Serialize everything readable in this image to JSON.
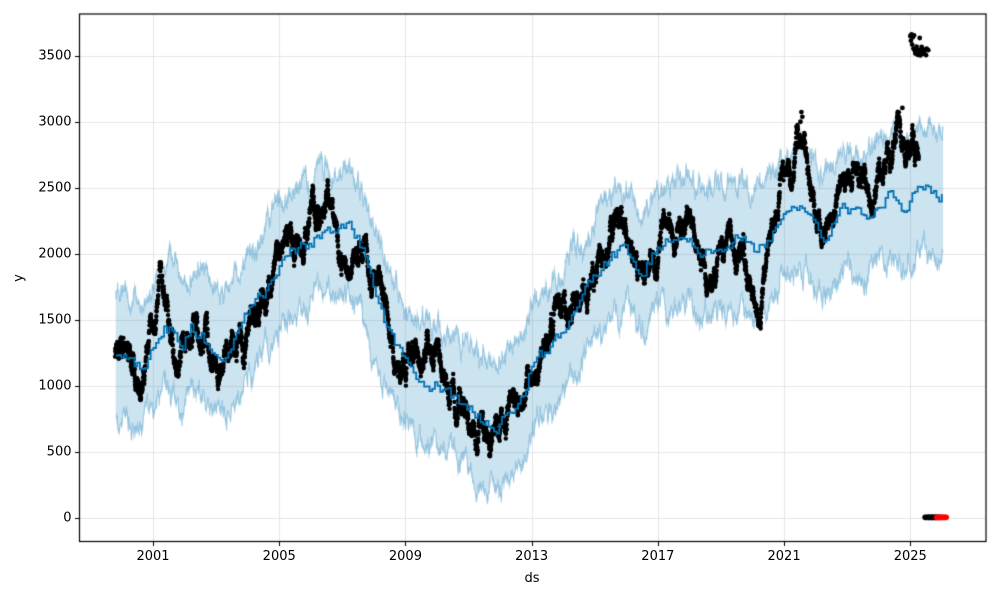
{
  "figure": {
    "background": "#ffffff",
    "kind": "prophet-style forecast plot"
  },
  "chart_data": {
    "type": "line",
    "title": "",
    "xlabel": "ds",
    "ylabel": "y",
    "x_ticks": [
      2001,
      2005,
      2009,
      2013,
      2017,
      2021,
      2025
    ],
    "y_ticks": [
      0,
      500,
      1000,
      1500,
      2000,
      2500,
      3000,
      3500
    ],
    "xlim": [
      1998.67,
      2027.4
    ],
    "ylim": [
      -178,
      3822
    ],
    "grid": true,
    "legend": false,
    "seed": 42,
    "colors": {
      "observed_points": "#000000",
      "forecast_line": "#0072B2",
      "uncertainty_fill": "rgba(0,114,178,0.20)",
      "uncertainty_edge": "rgba(0,114,178,0.32)",
      "anomaly_points": "#ff0000",
      "grid": "#e6e6e6",
      "frame": "#000000",
      "tick": "#000000"
    },
    "series": [
      {
        "name": "observed",
        "style": "scatter",
        "color": "#000000",
        "marker_radius": 2.2,
        "points_per_year": 210,
        "t_start": 1999.8,
        "t_end": 2025.27,
        "noise_ar": 0.975,
        "noise_amp": 92,
        "jitter": 26,
        "mean_anchors": [
          [
            1999.8,
            1215
          ],
          [
            2000.1,
            1230
          ],
          [
            2000.45,
            1120
          ],
          [
            2000.75,
            1090
          ],
          [
            2001.05,
            1320
          ],
          [
            2001.25,
            1720
          ],
          [
            2001.45,
            1680
          ],
          [
            2001.8,
            1250
          ],
          [
            2002.1,
            1390
          ],
          [
            2002.45,
            1520
          ],
          [
            2002.75,
            1280
          ],
          [
            2003.05,
            1060
          ],
          [
            2003.35,
            1120
          ],
          [
            2003.7,
            1320
          ],
          [
            2004.1,
            1560
          ],
          [
            2004.5,
            1700
          ],
          [
            2004.9,
            1900
          ],
          [
            2005.3,
            2060
          ],
          [
            2005.7,
            2110
          ],
          [
            2006.1,
            2120
          ],
          [
            2006.5,
            2180
          ],
          [
            2006.9,
            2080
          ],
          [
            2007.3,
            2150
          ],
          [
            2007.7,
            1950
          ],
          [
            2008.1,
            1700
          ],
          [
            2008.5,
            1450
          ],
          [
            2008.9,
            1200
          ],
          [
            2009.3,
            1020
          ],
          [
            2009.7,
            1080
          ],
          [
            2010.1,
            1010
          ],
          [
            2010.5,
            950
          ],
          [
            2010.9,
            860
          ],
          [
            2011.3,
            790
          ],
          [
            2011.7,
            710
          ],
          [
            2012.0,
            760
          ],
          [
            2012.4,
            830
          ],
          [
            2012.8,
            980
          ],
          [
            2013.2,
            1130
          ],
          [
            2013.6,
            1350
          ],
          [
            2014.0,
            1480
          ],
          [
            2014.4,
            1610
          ],
          [
            2014.8,
            1780
          ],
          [
            2015.2,
            2060
          ],
          [
            2015.6,
            2240
          ],
          [
            2016.0,
            2130
          ],
          [
            2016.35,
            1860
          ],
          [
            2016.7,
            2050
          ],
          [
            2017.0,
            2100
          ],
          [
            2017.4,
            2170
          ],
          [
            2017.8,
            2250
          ],
          [
            2018.1,
            2060
          ],
          [
            2018.5,
            1950
          ],
          [
            2018.9,
            2060
          ],
          [
            2019.3,
            2100
          ],
          [
            2019.7,
            1960
          ],
          [
            2020.0,
            1820
          ],
          [
            2020.2,
            1510
          ],
          [
            2020.5,
            1920
          ],
          [
            2020.9,
            2310
          ],
          [
            2021.3,
            2700
          ],
          [
            2021.6,
            2930
          ],
          [
            2021.9,
            2420
          ],
          [
            2022.2,
            2160
          ],
          [
            2022.5,
            2300
          ],
          [
            2022.8,
            2460
          ],
          [
            2023.1,
            2560
          ],
          [
            2023.4,
            2600
          ],
          [
            2023.7,
            2360
          ],
          [
            2024.0,
            2510
          ],
          [
            2024.3,
            2700
          ],
          [
            2024.6,
            2880
          ],
          [
            2024.9,
            2760
          ],
          [
            2025.1,
            2860
          ],
          [
            2025.27,
            2940
          ]
        ]
      },
      {
        "name": "yhat",
        "style": "step-line",
        "color": "#0072B2",
        "line_width": 1.8,
        "t_start": 1999.82,
        "t_end": 2026.05,
        "step_dt": 0.085,
        "step_ar": 0.55,
        "step_amp": 95,
        "anchors": [
          [
            1999.8,
            1225
          ],
          [
            2000.1,
            1235
          ],
          [
            2000.45,
            1160
          ],
          [
            2000.7,
            1170
          ],
          [
            2001.0,
            1290
          ],
          [
            2001.3,
            1420
          ],
          [
            2001.55,
            1440
          ],
          [
            2001.9,
            1270
          ],
          [
            2002.2,
            1430
          ],
          [
            2002.55,
            1400
          ],
          [
            2002.9,
            1260
          ],
          [
            2003.2,
            1250
          ],
          [
            2003.6,
            1380
          ],
          [
            2004.0,
            1560
          ],
          [
            2004.4,
            1680
          ],
          [
            2004.8,
            1830
          ],
          [
            2005.2,
            1990
          ],
          [
            2005.6,
            2030
          ],
          [
            2006.0,
            2090
          ],
          [
            2006.5,
            2230
          ],
          [
            2006.8,
            2150
          ],
          [
            2007.2,
            2180
          ],
          [
            2007.6,
            2060
          ],
          [
            2007.95,
            1760
          ],
          [
            2008.3,
            1520
          ],
          [
            2008.8,
            1270
          ],
          [
            2009.3,
            1060
          ],
          [
            2009.7,
            1040
          ],
          [
            2010.2,
            990
          ],
          [
            2010.7,
            880
          ],
          [
            2011.3,
            770
          ],
          [
            2011.9,
            670
          ],
          [
            2012.3,
            800
          ],
          [
            2012.7,
            900
          ],
          [
            2013.0,
            1150
          ],
          [
            2013.5,
            1270
          ],
          [
            2014.0,
            1420
          ],
          [
            2014.5,
            1590
          ],
          [
            2015.0,
            1830
          ],
          [
            2015.5,
            1980
          ],
          [
            2016.0,
            2040
          ],
          [
            2016.4,
            1870
          ],
          [
            2016.75,
            1960
          ],
          [
            2017.0,
            2070
          ],
          [
            2017.5,
            2090
          ],
          [
            2018.0,
            2130
          ],
          [
            2018.35,
            2000
          ],
          [
            2018.8,
            2040
          ],
          [
            2019.2,
            2050
          ],
          [
            2019.6,
            2150
          ],
          [
            2020.0,
            1990
          ],
          [
            2020.5,
            2110
          ],
          [
            2021.0,
            2270
          ],
          [
            2021.5,
            2350
          ],
          [
            2021.9,
            2300
          ],
          [
            2022.3,
            2120
          ],
          [
            2022.8,
            2310
          ],
          [
            2023.2,
            2370
          ],
          [
            2023.55,
            2260
          ],
          [
            2024.0,
            2400
          ],
          [
            2024.4,
            2480
          ],
          [
            2024.7,
            2370
          ],
          [
            2025.0,
            2390
          ],
          [
            2025.25,
            2510
          ],
          [
            2025.6,
            2500
          ],
          [
            2025.85,
            2420
          ],
          [
            2026.05,
            2490
          ]
        ]
      },
      {
        "name": "uncertainty_band",
        "style": "band",
        "halfwidth": 470,
        "t_start": 1999.82,
        "t_end": 2026.05,
        "edge_ar": 0.86,
        "edge_amp": 60,
        "edge_hf": 55
      },
      {
        "name": "high_outliers",
        "style": "points",
        "color": "#000000",
        "marker_radius": 2.4,
        "points": [
          [
            2025.0,
            3655
          ],
          [
            2025.04,
            3668
          ],
          [
            2025.08,
            3645
          ],
          [
            2025.02,
            3620
          ],
          [
            2025.12,
            3660
          ],
          [
            2025.3,
            3640
          ],
          [
            2025.06,
            3590
          ],
          [
            2025.1,
            3560
          ],
          [
            2025.14,
            3545
          ],
          [
            2025.18,
            3555
          ],
          [
            2025.22,
            3540
          ],
          [
            2025.26,
            3550
          ],
          [
            2025.3,
            3535
          ],
          [
            2025.34,
            3548
          ],
          [
            2025.38,
            3558
          ],
          [
            2025.42,
            3542
          ],
          [
            2025.24,
            3512
          ],
          [
            2025.32,
            3508
          ],
          [
            2025.16,
            3522
          ],
          [
            2025.4,
            3520
          ],
          [
            2025.47,
            3552
          ],
          [
            2025.52,
            3560
          ],
          [
            2025.57,
            3548
          ],
          [
            2025.36,
            3572
          ],
          [
            2025.2,
            3575
          ],
          [
            2025.44,
            3530
          ],
          [
            2025.5,
            3510
          ],
          [
            2024.75,
            3110
          ],
          [
            2021.55,
            3078
          ],
          [
            2021.58,
            3042
          ],
          [
            2021.52,
            3005
          ]
        ]
      },
      {
        "name": "zero_points_black",
        "style": "points",
        "color": "#000000",
        "marker_radius": 2.8,
        "points": [
          [
            2025.47,
            5
          ],
          [
            2025.52,
            5
          ],
          [
            2025.57,
            5
          ],
          [
            2025.62,
            5
          ],
          [
            2025.67,
            5
          ],
          [
            2025.72,
            5
          ],
          [
            2025.77,
            5
          ],
          [
            2025.82,
            5
          ],
          [
            2025.87,
            5
          ],
          [
            2025.92,
            5
          ],
          [
            2025.59,
            5
          ],
          [
            2025.69,
            5
          ],
          [
            2025.79,
            5
          ]
        ]
      },
      {
        "name": "zero_points_red",
        "style": "points",
        "color": "#ff0000",
        "marker_radius": 2.8,
        "points": [
          [
            2025.84,
            5
          ],
          [
            2025.89,
            5
          ],
          [
            2025.94,
            5
          ],
          [
            2025.99,
            5
          ],
          [
            2026.04,
            5
          ],
          [
            2026.09,
            5
          ],
          [
            2026.14,
            5
          ],
          [
            2025.96,
            5
          ],
          [
            2026.06,
            5
          ]
        ]
      }
    ]
  }
}
